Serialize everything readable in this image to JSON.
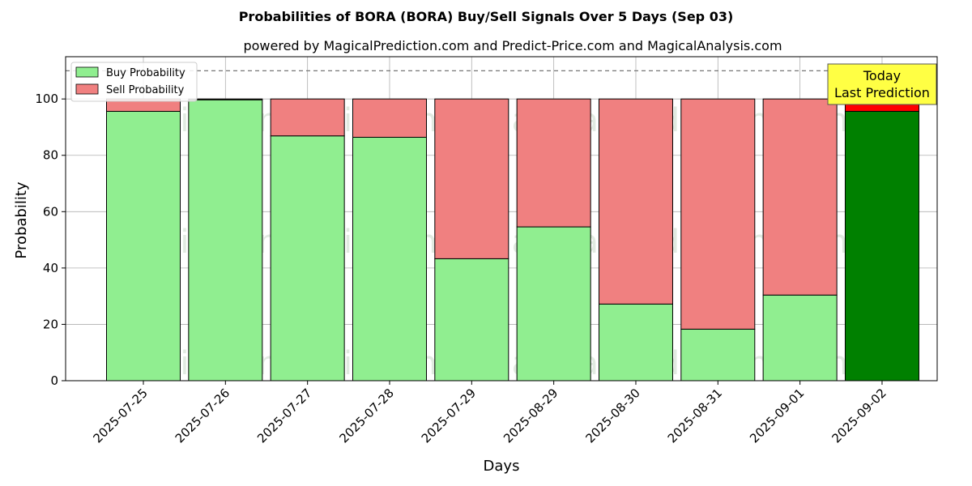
{
  "chart_data": {
    "type": "bar",
    "stacked": true,
    "title": "Probabilities of BORA (BORA) Buy/Sell Signals Over 5 Days (Sep 03)",
    "subtitle": "powered by MagicalPrediction.com and Predict-Price.com and MagicalAnalysis.com",
    "xlabel": "Days",
    "ylabel": "Probability",
    "ylim": [
      0,
      115
    ],
    "yticks": [
      0,
      20,
      40,
      60,
      80,
      100
    ],
    "grid": true,
    "legend_position": "top-left",
    "reference_line": 110,
    "categories": [
      "2025-07-25",
      "2025-07-26",
      "2025-07-27",
      "2025-07-28",
      "2025-07-29",
      "2025-08-29",
      "2025-08-30",
      "2025-08-31",
      "2025-09-01",
      "2025-09-02"
    ],
    "series": [
      {
        "name": "Buy Probability",
        "color": "#90ee90",
        "values": [
          95.6,
          99.7,
          86.9,
          86.4,
          43.3,
          54.6,
          27.2,
          18.3,
          30.4,
          95.6
        ]
      },
      {
        "name": "Sell Probability",
        "color": "#f08080",
        "values": [
          4.4,
          0.3,
          13.1,
          13.6,
          56.7,
          45.4,
          72.8,
          81.7,
          69.6,
          4.4
        ]
      }
    ],
    "highlight": {
      "index": 9,
      "buy_color": "#008000",
      "sell_color": "#ff0000"
    },
    "annotation": {
      "line1": "Today",
      "line2": "Last Prediction"
    },
    "watermarks": [
      "MagicalAnalysis.com",
      "MagicalPrediction.com"
    ]
  }
}
